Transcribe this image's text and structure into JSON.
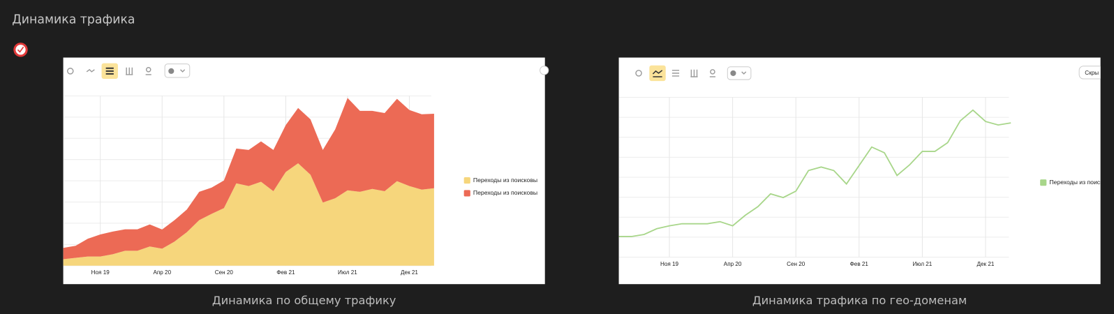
{
  "header": {
    "title": "Динамика трафика"
  },
  "chart_data": [
    {
      "type": "area",
      "stacked": true,
      "caption": "Динамика по общему трафику",
      "categories": [
        null,
        null,
        null,
        "Ноя 19",
        null,
        null,
        null,
        null,
        "Апр 20",
        null,
        null,
        null,
        null,
        "Сен 20",
        null,
        null,
        null,
        null,
        "Фев 21",
        null,
        null,
        null,
        null,
        "Июл 21",
        null,
        null,
        null,
        null,
        "Дек 21",
        null,
        null
      ],
      "series": [
        {
          "name": "Переходы из поисковы",
          "color": "#f6d67c",
          "values": [
            3.8,
            4.6,
            5.4,
            5.4,
            6.7,
            8.8,
            8.8,
            11.3,
            10,
            14.2,
            19.7,
            26.8,
            30.5,
            33.9,
            48.5,
            46.9,
            49.4,
            43.9,
            55.2,
            60.3,
            53.6,
            37.2,
            39.7,
            44.4,
            43.5,
            45.2,
            43.9,
            49.8,
            46.9,
            44.8,
            45.6
          ]
        },
        {
          "name": "Переходы из поисковы",
          "color": "#ec6a55",
          "values": [
            6.7,
            7.1,
            10.5,
            13,
            13.4,
            12.6,
            12.6,
            13,
            11.3,
            12.6,
            13.4,
            16.7,
            15.5,
            16.3,
            20.5,
            21.3,
            23.8,
            24.3,
            27.6,
            32.6,
            32.6,
            31,
            40.6,
            54.4,
            47.7,
            46,
            46,
            48.5,
            44.8,
            44.4,
            43.9
          ]
        }
      ],
      "ylim": [
        0,
        100
      ],
      "grid": true,
      "legend": "right"
    },
    {
      "type": "line",
      "caption": "Динамика трафика по гео-доменам",
      "button": "Скры",
      "categories": [
        null,
        null,
        null,
        null,
        "Ноя 19",
        null,
        null,
        null,
        null,
        "Апр 20",
        null,
        null,
        null,
        null,
        "Сен 20",
        null,
        null,
        null,
        null,
        "Фев 21",
        null,
        null,
        null,
        null,
        "Июл 21",
        null,
        null,
        null,
        null,
        "Дек 21",
        null,
        null
      ],
      "series": [
        {
          "name": "Переходы из поиск",
          "color": "#a8d68a",
          "values": [
            12.9,
            12.9,
            14.2,
            17.8,
            19.6,
            20.9,
            20.9,
            20.9,
            22.2,
            19.6,
            26.2,
            31.6,
            39.6,
            37.3,
            41.3,
            54.2,
            56.4,
            54.2,
            45.8,
            57.3,
            68.9,
            65.3,
            51.1,
            57.8,
            66.2,
            66.2,
            71.6,
            85.3,
            92,
            84.9,
            82.7,
            84
          ]
        }
      ],
      "ylim": [
        0,
        100
      ],
      "grid": true,
      "legend": "right"
    }
  ]
}
